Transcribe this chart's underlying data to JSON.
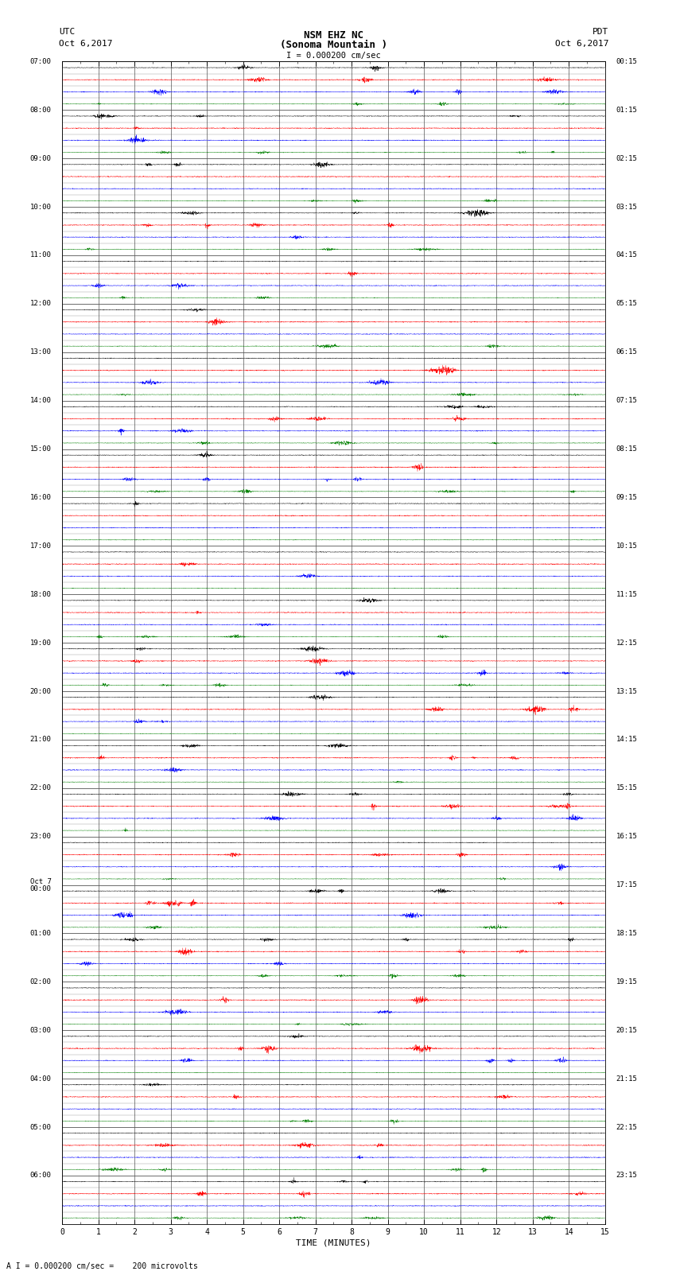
{
  "title_line1": "NSM EHZ NC",
  "title_line2": "(Sonoma Mountain )",
  "title_scale": "I = 0.000200 cm/sec",
  "label_utc": "UTC",
  "label_pdt": "PDT",
  "label_date_left": "Oct 6,2017",
  "label_date_right": "Oct 6,2017",
  "xlabel": "TIME (MINUTES)",
  "footer": "A I = 0.000200 cm/sec =    200 microvolts",
  "xlim": [
    0,
    15
  ],
  "xticks": [
    0,
    1,
    2,
    3,
    4,
    5,
    6,
    7,
    8,
    9,
    10,
    11,
    12,
    13,
    14,
    15
  ],
  "utc_labels": [
    "07:00",
    "08:00",
    "09:00",
    "10:00",
    "11:00",
    "12:00",
    "13:00",
    "14:00",
    "15:00",
    "16:00",
    "17:00",
    "18:00",
    "19:00",
    "20:00",
    "21:00",
    "22:00",
    "23:00",
    "00:00",
    "01:00",
    "02:00",
    "03:00",
    "04:00",
    "05:00",
    "06:00"
  ],
  "pdt_labels": [
    "00:15",
    "01:15",
    "02:15",
    "03:15",
    "04:15",
    "05:15",
    "06:15",
    "07:15",
    "08:15",
    "09:15",
    "10:15",
    "11:15",
    "12:15",
    "13:15",
    "14:15",
    "15:15",
    "16:15",
    "17:15",
    "18:15",
    "19:15",
    "20:15",
    "21:15",
    "22:15",
    "23:15"
  ],
  "oct7_hour_index": 17,
  "trace_colors": [
    "black",
    "red",
    "blue",
    "green"
  ],
  "num_hours": 24,
  "traces_per_hour": 4,
  "bg_color": "white",
  "text_color": "black",
  "amplitude_scale": [
    0.03,
    0.04,
    0.035,
    0.025
  ],
  "noise_seed": 12345
}
